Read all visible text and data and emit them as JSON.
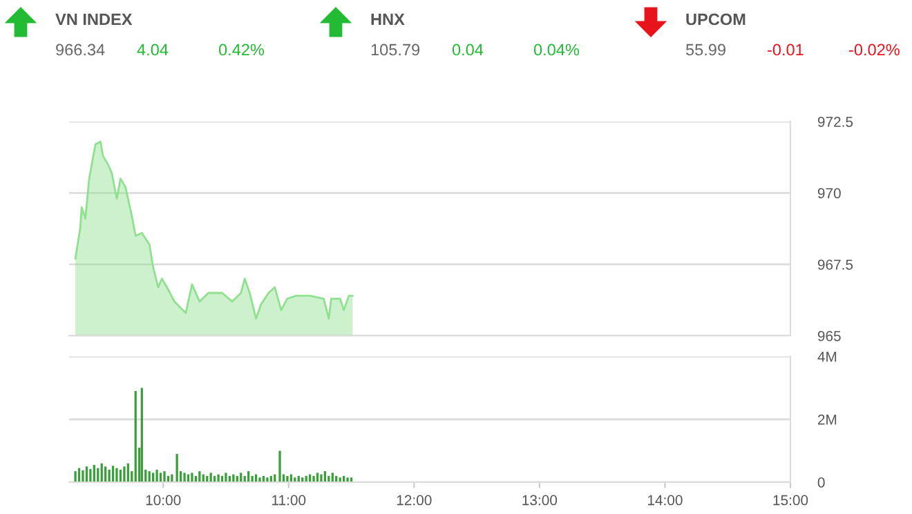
{
  "chart_data": [
    {
      "type": "other",
      "categories": [
        "VN INDEX",
        "HNX",
        "UPCOM"
      ],
      "values": [
        4.04,
        0.04,
        -0.01
      ],
      "value_labels": [
        "4.04",
        "0.04",
        "-0.01"
      ],
      "annotations": [
        "966.34",
        "105.79",
        "55.99",
        "0.42%",
        "0.04%",
        "-0.02%"
      ],
      "colors": [
        "#22bb33",
        "#22bb33",
        "#e8141b"
      ]
    },
    {
      "type": "area",
      "color": "#8fe08f",
      "xlim": [
        9.25,
        15
      ],
      "ylim": [
        965,
        972.5
      ],
      "yticks": [
        965,
        967.5,
        970,
        972.5
      ],
      "grid": "y",
      "tick_labels": "y",
      "x": [
        9.3,
        9.34,
        9.35,
        9.38,
        9.41,
        9.46,
        9.5,
        9.52,
        9.56,
        9.59,
        9.63,
        9.66,
        9.7,
        9.75,
        9.78,
        9.83,
        9.89,
        9.92,
        9.96,
        9.99,
        10.03,
        10.09,
        10.18,
        10.23,
        10.29,
        10.36,
        10.47,
        10.55,
        10.62,
        10.65,
        10.69,
        10.74,
        10.78,
        10.84,
        10.89,
        10.94,
        10.99,
        11.06,
        11.17,
        11.28,
        11.32,
        11.34,
        11.41,
        11.44,
        11.48,
        11.51
      ],
      "values": [
        967.7,
        968.8,
        969.5,
        969.1,
        970.5,
        971.7,
        971.8,
        971.3,
        971.0,
        970.7,
        969.8,
        970.5,
        970.2,
        969.2,
        968.5,
        968.6,
        968.2,
        967.4,
        966.7,
        967.0,
        966.7,
        966.2,
        965.8,
        966.8,
        966.2,
        966.5,
        966.5,
        966.2,
        966.5,
        967.0,
        966.5,
        965.6,
        966.1,
        966.5,
        966.7,
        965.9,
        966.3,
        966.4,
        966.4,
        966.3,
        965.6,
        966.3,
        966.3,
        965.9,
        966.4,
        966.4
      ]
    },
    {
      "type": "bar",
      "color": "#3a9e3a",
      "xlim": [
        9.25,
        15
      ],
      "ylim": [
        0,
        4
      ],
      "yticks": [
        0,
        {
          "value": 2,
          "label": "2M"
        },
        {
          "value": 4,
          "label": "4M"
        }
      ],
      "grid": "y",
      "xticks": [
        {
          "value": 10,
          "label": "10:00"
        },
        {
          "value": 11,
          "label": "11:00"
        },
        {
          "value": 12,
          "label": "12:00"
        },
        {
          "value": 13,
          "label": "13:00"
        },
        {
          "value": 14,
          "label": "14:00"
        },
        {
          "value": 15,
          "label": "15:00"
        }
      ],
      "x": [
        9.3,
        9.33,
        9.36,
        9.39,
        9.42,
        9.45,
        9.48,
        9.51,
        9.54,
        9.57,
        9.6,
        9.63,
        9.66,
        9.69,
        9.72,
        9.75,
        9.78,
        9.81,
        9.83,
        9.86,
        9.89,
        9.92,
        9.95,
        9.98,
        10.01,
        10.04,
        10.07,
        10.11,
        10.14,
        10.17,
        10.2,
        10.23,
        10.26,
        10.29,
        10.32,
        10.35,
        10.38,
        10.41,
        10.44,
        10.47,
        10.5,
        10.53,
        10.56,
        10.59,
        10.62,
        10.65,
        10.68,
        10.71,
        10.74,
        10.77,
        10.8,
        10.83,
        10.86,
        10.89,
        10.93,
        10.96,
        10.99,
        11.02,
        11.05,
        11.08,
        11.11,
        11.14,
        11.17,
        11.2,
        11.23,
        11.26,
        11.29,
        11.32,
        11.35,
        11.38,
        11.41,
        11.44,
        11.47,
        11.5
      ],
      "values": [
        0.35,
        0.45,
        0.38,
        0.5,
        0.42,
        0.55,
        0.45,
        0.6,
        0.5,
        0.4,
        0.52,
        0.45,
        0.4,
        0.5,
        0.6,
        0.35,
        2.9,
        1.1,
        3.0,
        0.4,
        0.35,
        0.3,
        0.4,
        0.3,
        0.35,
        0.2,
        0.25,
        0.9,
        0.35,
        0.3,
        0.25,
        0.3,
        0.2,
        0.35,
        0.25,
        0.2,
        0.3,
        0.2,
        0.25,
        0.2,
        0.3,
        0.2,
        0.25,
        0.2,
        0.3,
        0.2,
        0.35,
        0.2,
        0.25,
        0.15,
        0.2,
        0.15,
        0.2,
        0.25,
        1.0,
        0.25,
        0.2,
        0.25,
        0.15,
        0.2,
        0.15,
        0.2,
        0.25,
        0.2,
        0.3,
        0.25,
        0.35,
        0.2,
        0.3,
        0.2,
        0.15,
        0.2,
        0.15,
        0.15
      ]
    }
  ]
}
